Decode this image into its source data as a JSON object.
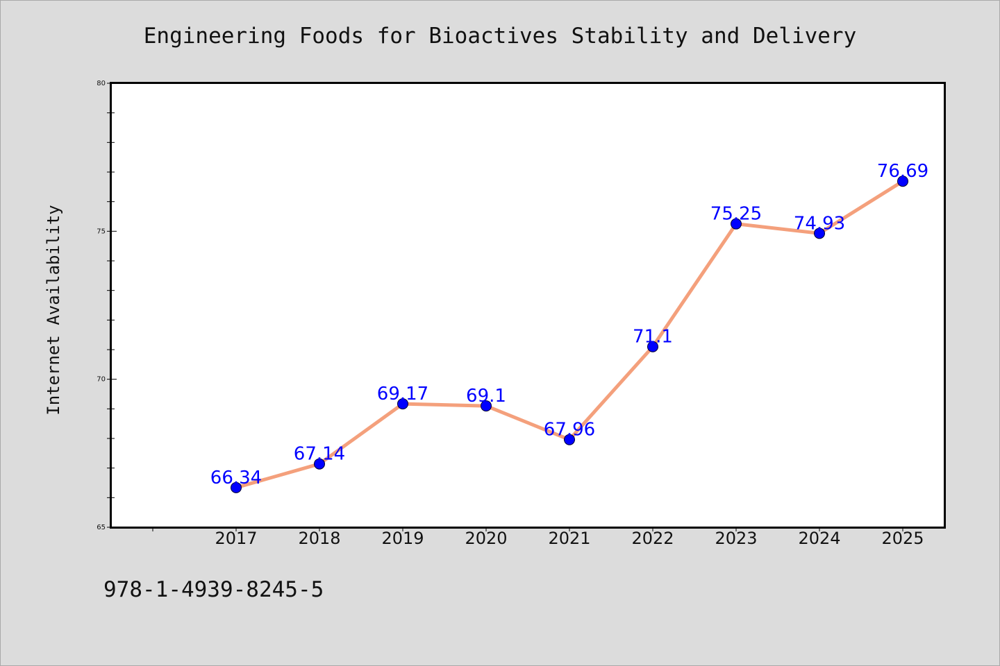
{
  "chart_data": {
    "type": "line",
    "title": "Engineering Foods for Bioactives Stability and Delivery",
    "xlabel": "",
    "ylabel": "Internet Availability",
    "categories": [
      "2017",
      "2018",
      "2019",
      "2020",
      "2021",
      "2022",
      "2023",
      "2024",
      "2025"
    ],
    "values": [
      66.34,
      67.14,
      69.17,
      69.1,
      67.96,
      71.1,
      75.25,
      74.93,
      76.69
    ],
    "data_labels": [
      "66.34",
      "67.14",
      "69.17",
      "69.1",
      "67.96",
      "71.1",
      "75.25",
      "74.93",
      "76.69"
    ],
    "ylim": [
      65,
      80
    ],
    "yticks": [
      "65",
      "70",
      "75",
      "80"
    ],
    "grid": false,
    "legend": "none",
    "line_color": "#f4a07c",
    "marker_color": "#0000ff",
    "label_color": "#0000ff"
  },
  "footer_text": "978-1-4939-8245-5"
}
